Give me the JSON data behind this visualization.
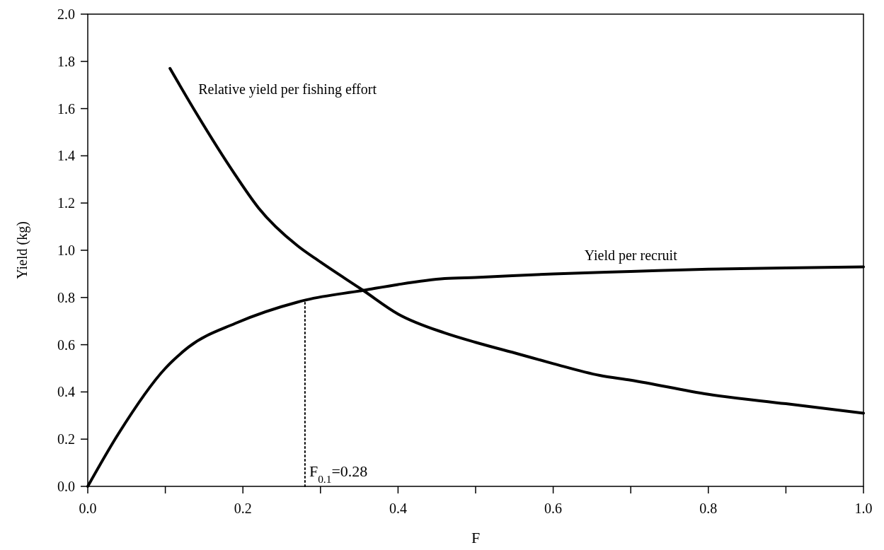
{
  "chart_data": {
    "type": "line",
    "xlabel": "F",
    "ylabel": "Yield (kg)",
    "xlim": [
      0,
      1
    ],
    "ylim": [
      0,
      2
    ],
    "xticks": [
      {
        "value": 0,
        "label": "0.0"
      },
      {
        "value": 0.1,
        "label": null
      },
      {
        "value": 0.2,
        "label": "0.2"
      },
      {
        "value": 0.3,
        "label": null
      },
      {
        "value": 0.4,
        "label": "0.4"
      },
      {
        "value": 0.5,
        "label": null
      },
      {
        "value": 0.6,
        "label": "0.6"
      },
      {
        "value": 0.7,
        "label": null
      },
      {
        "value": 0.8,
        "label": "0.8"
      },
      {
        "value": 0.9,
        "label": null
      },
      {
        "value": 1,
        "label": "1.0"
      }
    ],
    "yticks": [
      {
        "value": 0,
        "label": "0.0"
      },
      {
        "value": 0.2,
        "label": "0.2"
      },
      {
        "value": 0.4,
        "label": "0.4"
      },
      {
        "value": 0.6,
        "label": "0.6"
      },
      {
        "value": 0.8,
        "label": "0.8"
      },
      {
        "value": 1,
        "label": "1.0"
      },
      {
        "value": 1.2,
        "label": "1.2"
      },
      {
        "value": 1.4,
        "label": "1.4"
      },
      {
        "value": 1.6,
        "label": "1.6"
      },
      {
        "value": 1.8,
        "label": "1.8"
      },
      {
        "value": 2,
        "label": "2.0"
      }
    ],
    "marker": "none",
    "series": [
      {
        "name": "Relative yield per fishing effort",
        "color": "#000000",
        "x": [
          0.106,
          0.14,
          0.19,
          0.22,
          0.27,
          0.3,
          0.355,
          0.4,
          0.46,
          0.5,
          0.556,
          0.6,
          0.66,
          0.7,
          0.8,
          0.9,
          1.0
        ],
        "values": [
          1.77,
          1.58,
          1.32,
          1.18,
          1.02,
          0.95,
          0.83,
          0.73,
          0.65,
          0.61,
          0.56,
          0.52,
          0.47,
          0.45,
          0.39,
          0.35,
          0.31
        ]
      },
      {
        "name": "Yield per recruit",
        "color": "#000000",
        "x": [
          0,
          0.039,
          0.1,
          0.13,
          0.19,
          0.27,
          0.282,
          0.355,
          0.4,
          0.46,
          0.5,
          0.6,
          0.7,
          0.8,
          0.9,
          1.0
        ],
        "values": [
          0,
          0.22,
          0.5,
          0.59,
          0.69,
          0.78,
          0.79,
          0.83,
          0.855,
          0.88,
          0.885,
          0.9,
          0.91,
          0.92,
          0.925,
          0.93
        ]
      },
      {
        "type": "line",
        "line_style": "dotted",
        "color": "#000000",
        "x": [
          0.28,
          0.28
        ],
        "values": [
          0,
          0.79
        ]
      }
    ],
    "annotations": [
      {
        "text": "F$_{0.1}$=0.28",
        "x": 0.28,
        "y": 0
      }
    ]
  }
}
